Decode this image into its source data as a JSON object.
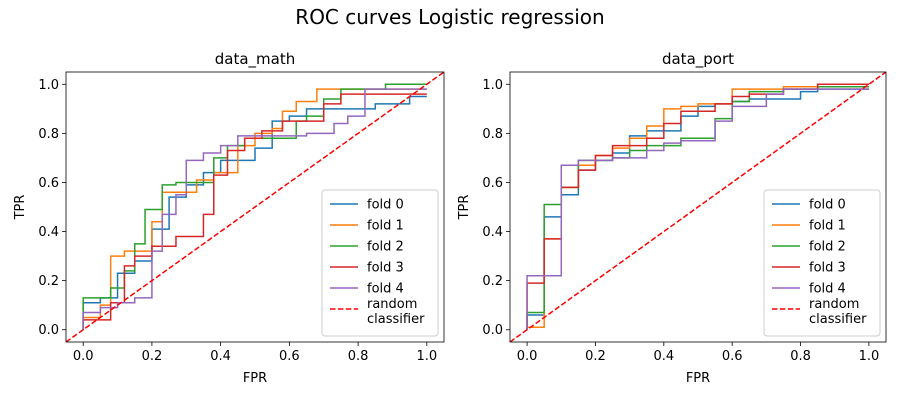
{
  "figure": {
    "title": "ROC curves Logistic regression"
  },
  "chart_data": [
    {
      "type": "line",
      "title": "data_math",
      "xlabel": "FPR",
      "ylabel": "TPR",
      "xlim": [
        -0.05,
        1.05
      ],
      "ylim": [
        -0.05,
        1.05
      ],
      "xticks": [
        "0.0",
        "0.2",
        "0.4",
        "0.6",
        "0.8",
        "1.0"
      ],
      "yticks": [
        "0.0",
        "0.2",
        "0.4",
        "0.6",
        "0.8",
        "1.0"
      ],
      "grid": false,
      "legend_position": "lower-right",
      "series": [
        {
          "name": "fold 0",
          "color": "#1f77b4",
          "step": true,
          "x": [
            0.0,
            0.0,
            0.05,
            0.05,
            0.1,
            0.1,
            0.15,
            0.15,
            0.2,
            0.2,
            0.25,
            0.25,
            0.3,
            0.3,
            0.35,
            0.35,
            0.4,
            0.4,
            0.5,
            0.5,
            0.55,
            0.55,
            0.6,
            0.6,
            0.65,
            0.65,
            0.75,
            0.75,
            0.85,
            0.85,
            0.95,
            0.95,
            1.0
          ],
          "y": [
            0.0,
            0.11,
            0.11,
            0.13,
            0.13,
            0.23,
            0.23,
            0.28,
            0.28,
            0.41,
            0.41,
            0.54,
            0.54,
            0.59,
            0.59,
            0.64,
            0.64,
            0.69,
            0.69,
            0.74,
            0.74,
            0.85,
            0.85,
            0.87,
            0.87,
            0.9,
            0.9,
            0.9,
            0.9,
            0.92,
            0.92,
            0.95,
            0.95
          ]
        },
        {
          "name": "fold 1",
          "color": "#ff7f0e",
          "step": true,
          "x": [
            0.0,
            0.0,
            0.05,
            0.05,
            0.08,
            0.08,
            0.12,
            0.12,
            0.2,
            0.2,
            0.23,
            0.23,
            0.33,
            0.33,
            0.38,
            0.38,
            0.45,
            0.45,
            0.5,
            0.5,
            0.55,
            0.55,
            0.58,
            0.58,
            0.62,
            0.62,
            0.68,
            0.68,
            1.0
          ],
          "y": [
            0.0,
            0.05,
            0.05,
            0.1,
            0.1,
            0.3,
            0.3,
            0.32,
            0.32,
            0.44,
            0.44,
            0.56,
            0.56,
            0.61,
            0.61,
            0.64,
            0.64,
            0.75,
            0.75,
            0.8,
            0.8,
            0.82,
            0.82,
            0.89,
            0.89,
            0.93,
            0.93,
            0.98,
            0.98
          ]
        },
        {
          "name": "fold 2",
          "color": "#2ca02c",
          "step": true,
          "x": [
            0.0,
            0.0,
            0.08,
            0.08,
            0.12,
            0.12,
            0.15,
            0.15,
            0.18,
            0.18,
            0.23,
            0.23,
            0.27,
            0.27,
            0.3,
            0.3,
            0.38,
            0.38,
            0.42,
            0.42,
            0.47,
            0.47,
            0.55,
            0.55,
            0.62,
            0.62,
            0.65,
            0.65,
            0.7,
            0.7,
            0.75,
            0.75,
            0.88,
            0.88,
            1.0
          ],
          "y": [
            0.0,
            0.13,
            0.13,
            0.17,
            0.17,
            0.24,
            0.24,
            0.35,
            0.35,
            0.49,
            0.49,
            0.59,
            0.59,
            0.6,
            0.6,
            0.6,
            0.6,
            0.7,
            0.7,
            0.75,
            0.75,
            0.78,
            0.78,
            0.78,
            0.78,
            0.85,
            0.85,
            0.87,
            0.87,
            0.94,
            0.94,
            0.98,
            0.98,
            1.0,
            1.0
          ]
        },
        {
          "name": "fold 3",
          "color": "#d62728",
          "step": true,
          "x": [
            0.0,
            0.0,
            0.08,
            0.08,
            0.12,
            0.12,
            0.15,
            0.15,
            0.2,
            0.2,
            0.27,
            0.27,
            0.35,
            0.35,
            0.38,
            0.38,
            0.42,
            0.42,
            0.47,
            0.47,
            0.52,
            0.52,
            0.58,
            0.58,
            0.65,
            0.65,
            0.7,
            0.7,
            0.75,
            0.75,
            0.8,
            0.8,
            1.0
          ],
          "y": [
            0.0,
            0.04,
            0.04,
            0.11,
            0.11,
            0.26,
            0.26,
            0.3,
            0.3,
            0.34,
            0.34,
            0.38,
            0.38,
            0.47,
            0.47,
            0.63,
            0.63,
            0.73,
            0.73,
            0.78,
            0.78,
            0.81,
            0.81,
            0.85,
            0.85,
            0.85,
            0.85,
            0.92,
            0.92,
            0.96,
            0.96,
            0.96,
            0.96
          ]
        },
        {
          "name": "fold 4",
          "color": "#9467bd",
          "step": true,
          "x": [
            0.0,
            0.0,
            0.05,
            0.05,
            0.1,
            0.1,
            0.15,
            0.15,
            0.2,
            0.2,
            0.23,
            0.23,
            0.27,
            0.27,
            0.3,
            0.3,
            0.35,
            0.35,
            0.4,
            0.4,
            0.45,
            0.45,
            0.6,
            0.6,
            0.65,
            0.65,
            0.73,
            0.73,
            0.77,
            0.77,
            0.82,
            0.82,
            1.0
          ],
          "y": [
            0.0,
            0.07,
            0.07,
            0.09,
            0.09,
            0.11,
            0.11,
            0.13,
            0.13,
            0.32,
            0.32,
            0.47,
            0.47,
            0.55,
            0.55,
            0.69,
            0.69,
            0.72,
            0.72,
            0.75,
            0.75,
            0.79,
            0.79,
            0.79,
            0.79,
            0.8,
            0.8,
            0.84,
            0.84,
            0.87,
            0.87,
            0.98,
            0.98
          ]
        },
        {
          "name": "random\nclassifier",
          "color": "#ff0000",
          "dashed": true,
          "x": [
            -0.05,
            1.05
          ],
          "y": [
            -0.05,
            1.05
          ]
        }
      ]
    },
    {
      "type": "line",
      "title": "data_port",
      "xlabel": "FPR",
      "ylabel": "TPR",
      "xlim": [
        -0.05,
        1.05
      ],
      "ylim": [
        -0.05,
        1.05
      ],
      "xticks": [
        "0.0",
        "0.2",
        "0.4",
        "0.6",
        "0.8",
        "1.0"
      ],
      "yticks": [
        "0.0",
        "0.2",
        "0.4",
        "0.6",
        "0.8",
        "1.0"
      ],
      "grid": false,
      "legend_position": "lower-right",
      "series": [
        {
          "name": "fold 0",
          "color": "#1f77b4",
          "step": true,
          "x": [
            0.0,
            0.0,
            0.05,
            0.05,
            0.1,
            0.1,
            0.15,
            0.15,
            0.2,
            0.2,
            0.25,
            0.25,
            0.3,
            0.3,
            0.35,
            0.35,
            0.4,
            0.4,
            0.45,
            0.45,
            0.5,
            0.5,
            0.55,
            0.55,
            0.6,
            0.6,
            0.65,
            0.65,
            0.7,
            0.7,
            0.8,
            0.8,
            0.85,
            0.85,
            1.0
          ],
          "y": [
            0.0,
            0.06,
            0.06,
            0.46,
            0.46,
            0.55,
            0.55,
            0.65,
            0.65,
            0.69,
            0.69,
            0.72,
            0.72,
            0.79,
            0.79,
            0.81,
            0.81,
            0.81,
            0.81,
            0.87,
            0.87,
            0.91,
            0.91,
            0.92,
            0.92,
            0.93,
            0.93,
            0.94,
            0.94,
            0.94,
            0.94,
            0.97,
            0.97,
            0.98,
            0.98
          ]
        },
        {
          "name": "fold 1",
          "color": "#ff7f0e",
          "step": true,
          "x": [
            0.0,
            0.0,
            0.05,
            0.05,
            0.1,
            0.1,
            0.15,
            0.15,
            0.2,
            0.2,
            0.25,
            0.25,
            0.3,
            0.3,
            0.35,
            0.35,
            0.4,
            0.4,
            0.45,
            0.45,
            0.5,
            0.5,
            0.6,
            0.6,
            0.65,
            0.65,
            0.75,
            0.75,
            0.85,
            0.85,
            1.0
          ],
          "y": [
            0.0,
            0.01,
            0.01,
            0.37,
            0.37,
            0.58,
            0.58,
            0.67,
            0.67,
            0.71,
            0.71,
            0.74,
            0.74,
            0.78,
            0.78,
            0.83,
            0.83,
            0.9,
            0.9,
            0.91,
            0.91,
            0.92,
            0.92,
            0.98,
            0.98,
            0.98,
            0.98,
            0.99,
            0.99,
            1.0,
            1.0
          ]
        },
        {
          "name": "fold 2",
          "color": "#2ca02c",
          "step": true,
          "x": [
            0.0,
            0.0,
            0.02,
            0.02,
            0.05,
            0.05,
            0.1,
            0.1,
            0.15,
            0.15,
            0.25,
            0.25,
            0.3,
            0.3,
            0.35,
            0.35,
            0.45,
            0.45,
            0.55,
            0.55,
            0.6,
            0.6,
            0.65,
            0.65,
            0.75,
            0.75,
            0.85,
            0.85,
            1.0
          ],
          "y": [
            0.0,
            0.07,
            0.07,
            0.07,
            0.07,
            0.51,
            0.51,
            0.58,
            0.58,
            0.69,
            0.69,
            0.7,
            0.7,
            0.73,
            0.73,
            0.75,
            0.75,
            0.78,
            0.78,
            0.86,
            0.86,
            0.93,
            0.93,
            0.97,
            0.97,
            0.98,
            0.98,
            0.99,
            0.99
          ]
        },
        {
          "name": "fold 3",
          "color": "#d62728",
          "step": true,
          "x": [
            0.0,
            0.0,
            0.05,
            0.05,
            0.1,
            0.1,
            0.15,
            0.15,
            0.2,
            0.2,
            0.25,
            0.25,
            0.35,
            0.35,
            0.4,
            0.4,
            0.45,
            0.45,
            0.55,
            0.55,
            0.6,
            0.6,
            0.65,
            0.65,
            0.75,
            0.75,
            0.85,
            0.85,
            1.0
          ],
          "y": [
            0.0,
            0.19,
            0.19,
            0.37,
            0.37,
            0.58,
            0.58,
            0.65,
            0.65,
            0.71,
            0.71,
            0.75,
            0.75,
            0.78,
            0.78,
            0.84,
            0.84,
            0.89,
            0.89,
            0.92,
            0.92,
            0.95,
            0.95,
            0.96,
            0.96,
            0.98,
            0.98,
            1.0,
            1.0
          ]
        },
        {
          "name": "fold 4",
          "color": "#9467bd",
          "step": true,
          "x": [
            0.0,
            0.0,
            0.08,
            0.08,
            0.1,
            0.1,
            0.15,
            0.15,
            0.25,
            0.25,
            0.35,
            0.35,
            0.4,
            0.4,
            0.45,
            0.45,
            0.55,
            0.55,
            0.6,
            0.6,
            0.7,
            0.7,
            0.75,
            0.75,
            1.0
          ],
          "y": [
            0.0,
            0.22,
            0.22,
            0.22,
            0.22,
            0.67,
            0.67,
            0.69,
            0.69,
            0.7,
            0.7,
            0.73,
            0.73,
            0.76,
            0.76,
            0.77,
            0.77,
            0.85,
            0.85,
            0.91,
            0.91,
            0.96,
            0.96,
            0.98,
            0.98
          ]
        },
        {
          "name": "random\nclassifier",
          "color": "#ff0000",
          "dashed": true,
          "x": [
            -0.05,
            1.05
          ],
          "y": [
            -0.05,
            1.05
          ]
        }
      ]
    }
  ]
}
